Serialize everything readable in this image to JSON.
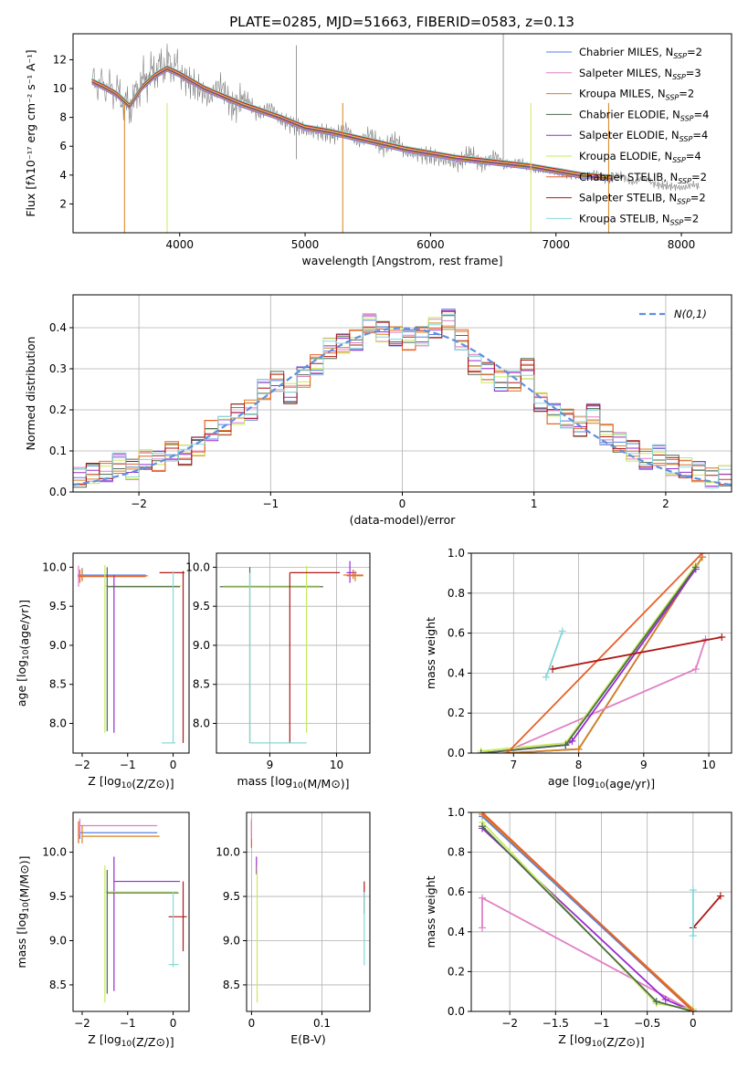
{
  "figure": {
    "title": "PLATE=0285, MJD=51663, FIBERID=0583, z=0.13"
  },
  "colors": {
    "chabrier_miles": "#5a7fe0",
    "salpeter_miles": "#e07fc4",
    "kroupa_miles": "#d8801e",
    "chabrier_elodie": "#4c6b4c",
    "salpeter_elodie": "#9a2ad0",
    "kroupa_elodie": "#c6ec5a",
    "chabrier_stelib": "#e8602a",
    "salpeter_stelib": "#b01818",
    "kroupa_stelib": "#84d8d8",
    "data": "#808080",
    "normal": "#6090e0",
    "grid": "#b0b0b0"
  },
  "chart_data": [
    {
      "id": "spectrum",
      "type": "line",
      "xlabel": "wavelength [Angstrom, rest frame]",
      "ylabel": "Flux [fλ10⁻¹⁷ erg cm⁻² s⁻¹ A⁻¹]",
      "xlim": [
        3150,
        8400
      ],
      "ylim": [
        0,
        13.8
      ],
      "xticks": [
        4000,
        5000,
        6000,
        7000,
        8000
      ],
      "yticks": [
        2,
        4,
        6,
        8,
        10,
        12
      ],
      "grid": false,
      "legend_position": "top-right",
      "data_series": {
        "name": "data",
        "x": [
          3300,
          3400,
          3500,
          3600,
          3700,
          3800,
          3900,
          4000,
          4200,
          4500,
          4800,
          5000,
          5200,
          5500,
          5800,
          6000,
          6200,
          6500,
          6800,
          7000,
          7200,
          7500,
          7800,
          8000,
          8150
        ],
        "y": [
          10.5,
          10.2,
          9.8,
          8.6,
          10.5,
          11.2,
          11.8,
          11.3,
          10.1,
          9.0,
          8.1,
          7.4,
          7.1,
          6.5,
          5.9,
          5.6,
          5.2,
          5.0,
          4.6,
          4.4,
          4.0,
          3.8,
          3.5,
          3.3,
          3.1
        ]
      },
      "model_x": [
        3300,
        3400,
        3500,
        3600,
        3700,
        3800,
        3900,
        4000,
        4200,
        4500,
        4800,
        5000,
        5200,
        5500,
        5800,
        6000,
        6200,
        6500,
        6800,
        7000,
        7200,
        7450
      ],
      "model_y": [
        10.5,
        10.1,
        9.6,
        8.8,
        10.1,
        10.9,
        11.4,
        11.0,
        10.0,
        8.9,
        8.0,
        7.3,
        7.0,
        6.4,
        5.8,
        5.5,
        5.2,
        4.9,
        4.6,
        4.3,
        4.0,
        3.8
      ],
      "series_names": [
        "Chabrier MILES, N_SSP=2",
        "Salpeter MILES, N_SSP=3",
        "Kroupa MILES, N_SSP=2",
        "Chabrier ELODIE, N_SSP=4",
        "Salpeter ELODIE, N_SSP=4",
        "Kroupa ELODIE, N_SSP=4",
        "Chabrier STELIB, N_SSP=2",
        "Salpeter STELIB, N_SSP=2",
        "Kroupa STELIB, N_SSP=2"
      ]
    },
    {
      "id": "residuals",
      "type": "line",
      "xlabel": "(data-model)/error",
      "ylabel": "Normed distribution",
      "xlim": [
        -2.5,
        2.5
      ],
      "ylim": [
        0,
        0.48
      ],
      "xticks": [
        -2,
        -1,
        0,
        1,
        2
      ],
      "yticks": [
        0.0,
        0.1,
        0.2,
        0.3,
        0.4
      ],
      "grid": true,
      "legend_position": "top-right",
      "legend_label": "N(0,1)",
      "bin_edges": [
        -2.5,
        -2.4,
        -2.3,
        -2.2,
        -2.1,
        -2.0,
        -1.9,
        -1.8,
        -1.7,
        -1.6,
        -1.5,
        -1.4,
        -1.3,
        -1.2,
        -1.1,
        -1.0,
        -0.9,
        -0.8,
        -0.7,
        -0.6,
        -0.5,
        -0.4,
        -0.3,
        -0.2,
        -0.1,
        0.0,
        0.1,
        0.2,
        0.3,
        0.4,
        0.5,
        0.6,
        0.7,
        0.8,
        0.9,
        1.0,
        1.1,
        1.2,
        1.3,
        1.4,
        1.5,
        1.6,
        1.7,
        1.8,
        1.9,
        2.0,
        2.1,
        2.2,
        2.3,
        2.4,
        2.5
      ],
      "histogram": [
        0.035,
        0.045,
        0.05,
        0.07,
        0.055,
        0.08,
        0.075,
        0.1,
        0.09,
        0.11,
        0.15,
        0.16,
        0.19,
        0.2,
        0.25,
        0.27,
        0.24,
        0.28,
        0.31,
        0.35,
        0.36,
        0.37,
        0.41,
        0.39,
        0.38,
        0.37,
        0.38,
        0.4,
        0.42,
        0.37,
        0.31,
        0.29,
        0.27,
        0.27,
        0.3,
        0.22,
        0.19,
        0.18,
        0.16,
        0.19,
        0.14,
        0.12,
        0.1,
        0.08,
        0.09,
        0.065,
        0.06,
        0.05,
        0.035,
        0.04
      ]
    },
    {
      "id": "age-vs-Z",
      "type": "scatter",
      "xlabel": "Z [log10(Z/Z⊙)]",
      "ylabel": "age  [log10(age/yr)]",
      "xlim": [
        -2.2,
        0.35
      ],
      "ylim": [
        7.62,
        10.18
      ],
      "xticks": [
        -2,
        -1,
        0
      ],
      "yticks": [
        8.0,
        8.5,
        9.0,
        9.5,
        10.0
      ],
      "grid": false
    },
    {
      "id": "age-vs-mass",
      "type": "scatter",
      "xlabel": "mass [log10(M/M⊙)]",
      "ylabel": "",
      "xlim": [
        8.2,
        10.5
      ],
      "ylim": [
        7.62,
        10.18
      ],
      "xticks": [
        9,
        10
      ],
      "yticks": [
        8.0,
        8.5,
        9.0,
        9.5,
        10.0
      ],
      "grid": true
    },
    {
      "id": "massweight-vs-age",
      "type": "line",
      "xlabel": "age  [log10(age/yr)]",
      "ylabel": "mass weight",
      "xlim": [
        6.35,
        10.35
      ],
      "ylim": [
        0,
        1
      ],
      "xticks": [
        7,
        8,
        9,
        10
      ],
      "yticks": [
        0.0,
        0.2,
        0.4,
        0.6,
        0.8,
        1.0
      ],
      "grid": true,
      "series": [
        {
          "key": "chabrier_miles",
          "x": [
            6.9,
            8.0,
            9.9
          ],
          "y": [
            0.0,
            0.02,
            0.98
          ]
        },
        {
          "key": "kroupa_miles",
          "x": [
            6.9,
            8.0,
            9.9
          ],
          "y": [
            0.0,
            0.02,
            0.98
          ]
        },
        {
          "key": "salpeter_miles",
          "x": [
            6.9,
            9.8,
            9.95
          ],
          "y": [
            0.01,
            0.42,
            0.57
          ]
        },
        {
          "key": "salpeter_elodie",
          "x": [
            6.5,
            7.8,
            7.9,
            9.8
          ],
          "y": [
            0.0,
            0.04,
            0.06,
            0.92
          ]
        },
        {
          "key": "kroupa_elodie",
          "x": [
            6.5,
            7.8,
            9.8
          ],
          "y": [
            0.01,
            0.05,
            0.94
          ]
        },
        {
          "key": "chabrier_elodie",
          "x": [
            6.5,
            7.8,
            9.8
          ],
          "y": [
            0.0,
            0.04,
            0.93
          ]
        },
        {
          "key": "chabrier_stelib",
          "x": [
            6.9,
            9.9
          ],
          "y": [
            0.0,
            1.0
          ]
        },
        {
          "key": "salpeter_stelib",
          "x": [
            7.6,
            10.2
          ],
          "y": [
            0.42,
            0.58
          ]
        },
        {
          "key": "kroupa_stelib",
          "x": [
            7.5,
            7.75
          ],
          "y": [
            0.38,
            0.61
          ]
        }
      ]
    },
    {
      "id": "mass-vs-Z",
      "type": "scatter",
      "xlabel": "Z [log10(Z/Z⊙)]",
      "ylabel": "mass [log10(M/M⊙)]",
      "xlim": [
        -2.2,
        0.35
      ],
      "ylim": [
        8.2,
        10.45
      ],
      "xticks": [
        -2,
        -1,
        0
      ],
      "yticks": [
        8.5,
        9.0,
        9.5,
        10.0
      ],
      "grid": false
    },
    {
      "id": "mass-vs-EBV",
      "type": "scatter",
      "xlabel": "E(B-V)",
      "ylabel": "",
      "xlim": [
        -0.007,
        0.168
      ],
      "ylim": [
        8.2,
        10.45
      ],
      "xticks": [
        0.0,
        0.1
      ],
      "yticks": [
        8.5,
        9.0,
        9.5,
        10.0
      ],
      "grid": true
    },
    {
      "id": "massweight-vs-Z",
      "type": "line",
      "xlabel": "Z [log10(Z/Z⊙)]",
      "ylabel": "mass weight",
      "xlim": [
        -2.42,
        0.42
      ],
      "ylim": [
        0,
        1
      ],
      "xticks": [
        -2.0,
        -1.5,
        -1.0,
        -0.5,
        0.0
      ],
      "yticks": [
        0.0,
        0.2,
        0.4,
        0.6,
        0.8,
        1.0
      ],
      "grid": true,
      "series": [
        {
          "key": "chabrier_miles",
          "x": [
            -2.3,
            0.0
          ],
          "y": [
            0.98,
            0.0
          ]
        },
        {
          "key": "kroupa_miles",
          "x": [
            -2.3,
            0.0
          ],
          "y": [
            0.99,
            0.01
          ]
        },
        {
          "key": "salpeter_miles",
          "x": [
            -2.3,
            -2.3,
            0.0
          ],
          "y": [
            0.42,
            0.57,
            0.0
          ]
        },
        {
          "key": "salpeter_elodie",
          "x": [
            -2.3,
            -0.3,
            0.0
          ],
          "y": [
            0.92,
            0.06,
            0.0
          ]
        },
        {
          "key": "kroupa_elodie",
          "x": [
            -2.3,
            -0.4,
            0.0
          ],
          "y": [
            0.95,
            0.04,
            0.01
          ]
        },
        {
          "key": "chabrier_elodie",
          "x": [
            -2.3,
            -0.4,
            0.0
          ],
          "y": [
            0.93,
            0.05,
            0.0
          ]
        },
        {
          "key": "chabrier_stelib",
          "x": [
            -2.3,
            0.0
          ],
          "y": [
            1.0,
            0.0
          ]
        },
        {
          "key": "salpeter_stelib",
          "x": [
            0.0,
            0.3
          ],
          "y": [
            0.42,
            0.58
          ]
        },
        {
          "key": "kroupa_stelib",
          "x": [
            0.0,
            0.0
          ],
          "y": [
            0.38,
            0.61
          ]
        }
      ]
    }
  ]
}
